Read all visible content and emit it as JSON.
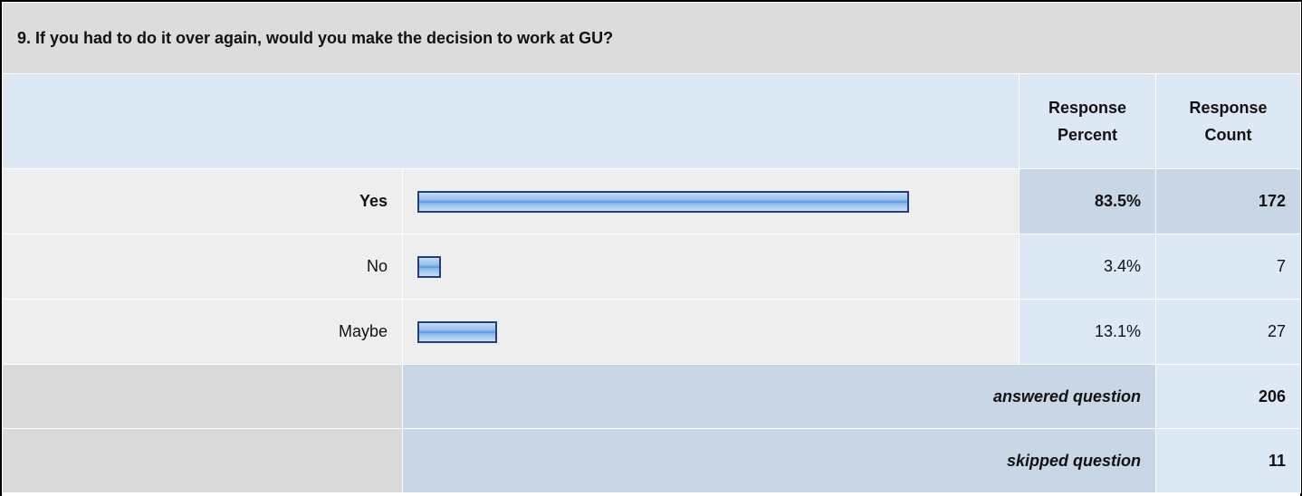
{
  "title": "9. If you had to do it over again, would you make the decision to work at GU?",
  "headers": [
    "Response Percent",
    "Response Count"
  ],
  "rows": [
    {
      "label": "Yes",
      "percent": {
        "value": 83.5,
        "label": "83.5%"
      },
      "count": 172
    },
    {
      "label": "No",
      "percent": {
        "value": 3.4,
        "label": "3.4%"
      },
      "count": 7
    },
    {
      "label": "Maybe",
      "percent": {
        "value": 13.1,
        "label": "13.1%"
      },
      "count": 27
    }
  ],
  "footer": [
    {
      "label": "answered question",
      "count": 206
    },
    {
      "label": "skipped question",
      "count": 11
    }
  ]
}
